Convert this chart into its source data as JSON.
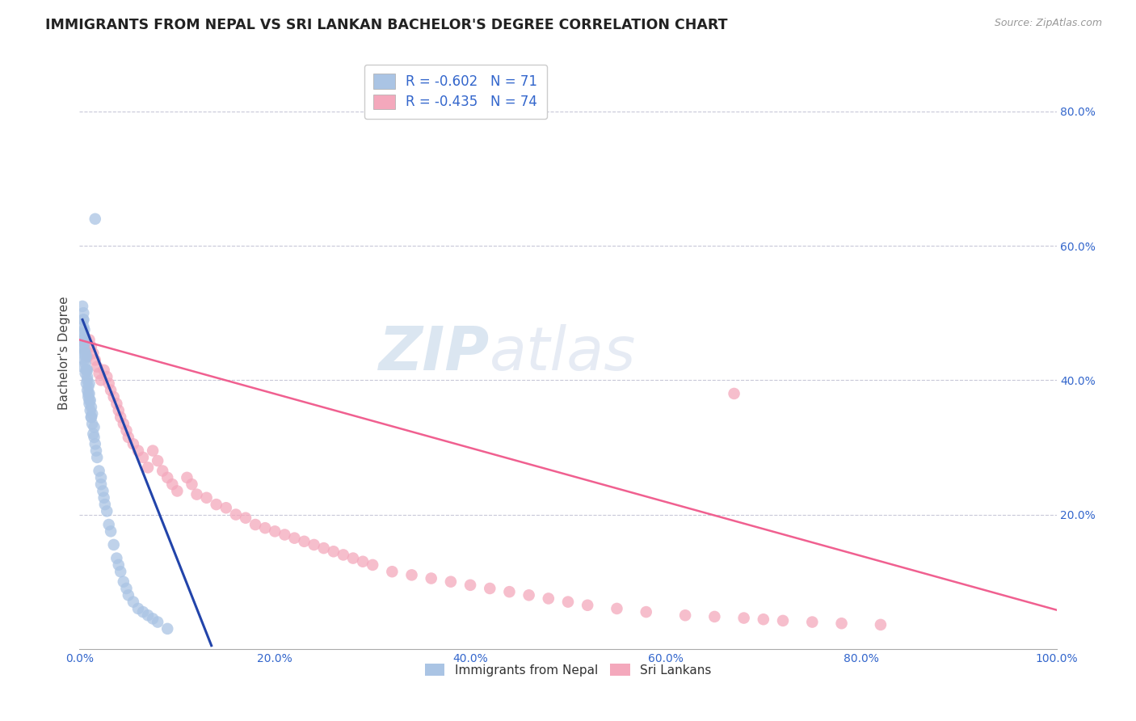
{
  "title": "IMMIGRANTS FROM NEPAL VS SRI LANKAN BACHELOR'S DEGREE CORRELATION CHART",
  "source": "Source: ZipAtlas.com",
  "ylabel": "Bachelor's Degree",
  "xlim": [
    0.0,
    1.0
  ],
  "ylim": [
    0.0,
    0.88
  ],
  "xtick_labels": [
    "0.0%",
    "20.0%",
    "40.0%",
    "60.0%",
    "80.0%",
    "100.0%"
  ],
  "xtick_values": [
    0.0,
    0.2,
    0.4,
    0.6,
    0.8,
    1.0
  ],
  "ytick_labels": [
    "20.0%",
    "40.0%",
    "60.0%",
    "80.0%"
  ],
  "ytick_values": [
    0.2,
    0.4,
    0.6,
    0.8
  ],
  "nepal_R": -0.602,
  "nepal_N": 71,
  "srilanka_R": -0.435,
  "srilanka_N": 74,
  "nepal_color": "#aac4e4",
  "srilanka_color": "#f4a8bc",
  "nepal_line_color": "#2244aa",
  "srilanka_line_color": "#f06090",
  "background_color": "#ffffff",
  "grid_color": "#c8c8d8",
  "watermark_zip": "ZIP",
  "watermark_atlas": "atlas",
  "nepal_scatter_x": [
    0.003,
    0.003,
    0.004,
    0.004,
    0.004,
    0.004,
    0.004,
    0.005,
    0.005,
    0.005,
    0.005,
    0.005,
    0.006,
    0.006,
    0.006,
    0.007,
    0.007,
    0.007,
    0.008,
    0.008,
    0.008,
    0.009,
    0.009,
    0.01,
    0.01,
    0.01,
    0.011,
    0.011,
    0.012,
    0.012,
    0.013,
    0.013,
    0.015,
    0.015,
    0.016,
    0.017,
    0.018,
    0.02,
    0.022,
    0.022,
    0.024,
    0.025,
    0.026,
    0.028,
    0.03,
    0.032,
    0.035,
    0.038,
    0.04,
    0.042,
    0.045,
    0.048,
    0.05,
    0.055,
    0.06,
    0.065,
    0.07,
    0.075,
    0.08,
    0.09,
    0.003,
    0.004,
    0.005,
    0.006,
    0.007,
    0.008,
    0.009,
    0.01,
    0.012,
    0.014,
    0.016
  ],
  "nepal_scatter_y": [
    0.42,
    0.45,
    0.46,
    0.47,
    0.48,
    0.49,
    0.5,
    0.43,
    0.44,
    0.455,
    0.465,
    0.475,
    0.41,
    0.425,
    0.44,
    0.395,
    0.415,
    0.435,
    0.385,
    0.4,
    0.415,
    0.375,
    0.39,
    0.365,
    0.38,
    0.395,
    0.355,
    0.37,
    0.345,
    0.36,
    0.335,
    0.35,
    0.315,
    0.33,
    0.305,
    0.295,
    0.285,
    0.265,
    0.245,
    0.255,
    0.235,
    0.225,
    0.215,
    0.205,
    0.185,
    0.175,
    0.155,
    0.135,
    0.125,
    0.115,
    0.1,
    0.09,
    0.08,
    0.07,
    0.06,
    0.055,
    0.05,
    0.045,
    0.04,
    0.03,
    0.51,
    0.49,
    0.445,
    0.435,
    0.415,
    0.405,
    0.38,
    0.37,
    0.345,
    0.32,
    0.64
  ],
  "srilanka_scatter_x": [
    0.005,
    0.006,
    0.008,
    0.01,
    0.012,
    0.014,
    0.016,
    0.018,
    0.02,
    0.022,
    0.025,
    0.028,
    0.03,
    0.032,
    0.035,
    0.038,
    0.04,
    0.042,
    0.045,
    0.048,
    0.05,
    0.055,
    0.06,
    0.065,
    0.07,
    0.075,
    0.08,
    0.085,
    0.09,
    0.095,
    0.1,
    0.11,
    0.115,
    0.12,
    0.13,
    0.14,
    0.15,
    0.16,
    0.17,
    0.18,
    0.19,
    0.2,
    0.21,
    0.22,
    0.23,
    0.24,
    0.25,
    0.26,
    0.27,
    0.28,
    0.29,
    0.3,
    0.32,
    0.34,
    0.36,
    0.38,
    0.4,
    0.42,
    0.44,
    0.46,
    0.48,
    0.5,
    0.52,
    0.55,
    0.58,
    0.62,
    0.65,
    0.68,
    0.7,
    0.72,
    0.75,
    0.78,
    0.82,
    0.67
  ],
  "srilanka_scatter_y": [
    0.455,
    0.445,
    0.435,
    0.46,
    0.45,
    0.44,
    0.43,
    0.42,
    0.41,
    0.4,
    0.415,
    0.405,
    0.395,
    0.385,
    0.375,
    0.365,
    0.355,
    0.345,
    0.335,
    0.325,
    0.315,
    0.305,
    0.295,
    0.285,
    0.27,
    0.295,
    0.28,
    0.265,
    0.255,
    0.245,
    0.235,
    0.255,
    0.245,
    0.23,
    0.225,
    0.215,
    0.21,
    0.2,
    0.195,
    0.185,
    0.18,
    0.175,
    0.17,
    0.165,
    0.16,
    0.155,
    0.15,
    0.145,
    0.14,
    0.135,
    0.13,
    0.125,
    0.115,
    0.11,
    0.105,
    0.1,
    0.095,
    0.09,
    0.085,
    0.08,
    0.075,
    0.07,
    0.065,
    0.06,
    0.055,
    0.05,
    0.048,
    0.046,
    0.044,
    0.042,
    0.04,
    0.038,
    0.036,
    0.38
  ],
  "nepal_line_x": [
    0.003,
    0.135
  ],
  "nepal_line_y": [
    0.49,
    0.005
  ],
  "srilanka_line_x": [
    0.0,
    1.0
  ],
  "srilanka_line_y": [
    0.46,
    0.058
  ],
  "title_fontsize": 12.5,
  "axis_label_fontsize": 11,
  "tick_fontsize": 10,
  "legend_fontsize": 12
}
